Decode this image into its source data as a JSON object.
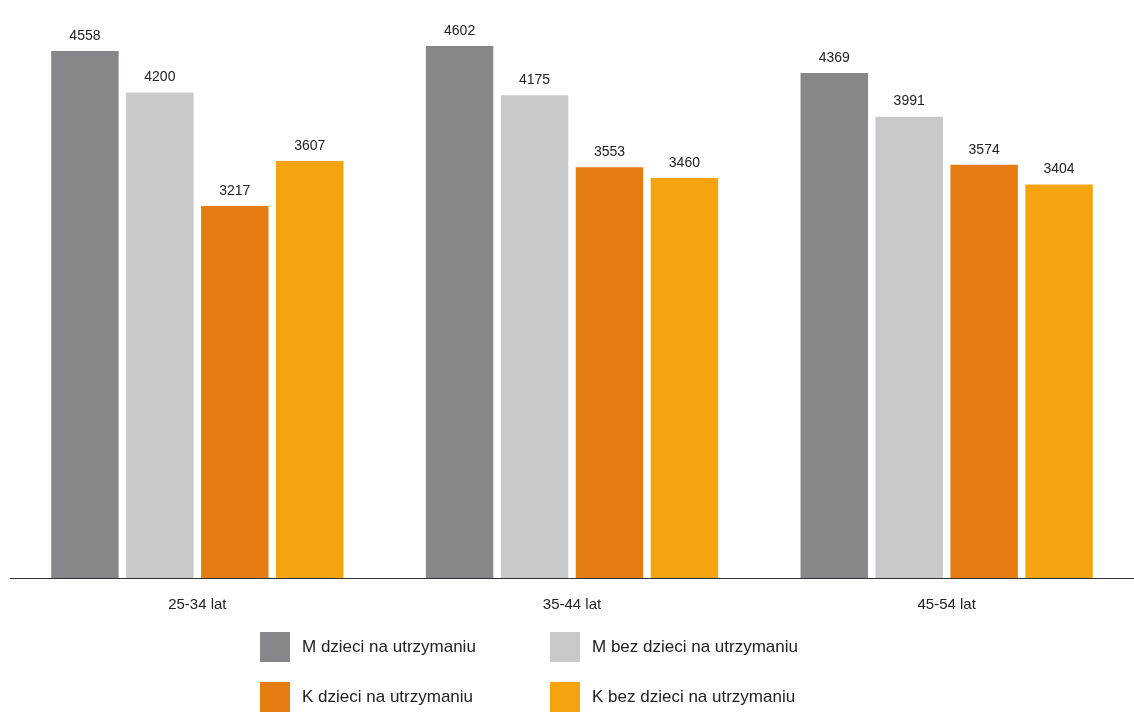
{
  "chart_data": {
    "type": "bar",
    "categories": [
      "25-34 lat",
      "35-44 lat",
      "45-54 lat"
    ],
    "series": [
      {
        "name": "M dzieci na utrzymaniu",
        "color": "#85878a",
        "values": [
          4558,
          4602,
          4369
        ]
      },
      {
        "name": "M bez dzieci na utrzymaniu",
        "color": "#c6c8ca",
        "values": [
          4200,
          4175,
          3991
        ]
      },
      {
        "name": "K dzieci na utrzymaniu",
        "color": "#e57c10",
        "values": [
          3217,
          3553,
          3574
        ]
      },
      {
        "name": "K bez dzieci na utrzymaniu",
        "color": "#f5a40f",
        "values": [
          3607,
          3460,
          3404
        ]
      }
    ],
    "data_labels": true,
    "legend": "bottom",
    "grid": false
  }
}
